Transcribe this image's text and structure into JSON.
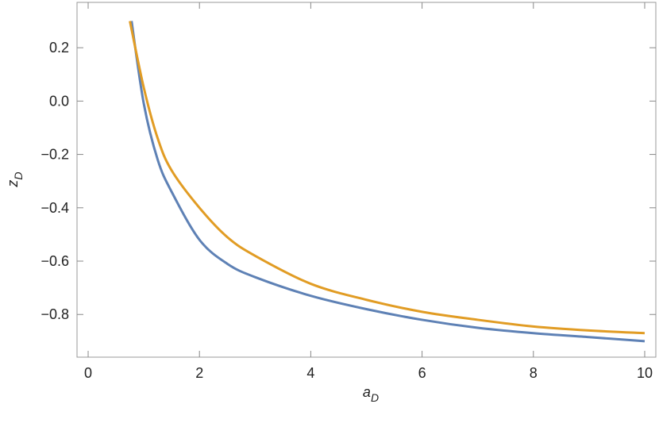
{
  "chart_data": {
    "type": "line",
    "xlabel": "a",
    "xlabel_sub": "D",
    "ylabel": "z",
    "ylabel_sub": "D",
    "xlim": [
      -0.2,
      10.2
    ],
    "ylim": [
      -0.96,
      0.37
    ],
    "xticks": [
      0,
      2,
      4,
      6,
      8,
      10
    ],
    "yticks": [
      0.2,
      {
        "value": 0,
        "label": "0.0"
      },
      {
        "value": -0.2,
        "label": "−0.2"
      },
      {
        "value": -0.4,
        "label": "−0.4"
      },
      {
        "value": -0.6,
        "label": "−0.6"
      },
      {
        "value": -0.8,
        "label": "−0.8"
      }
    ],
    "series": [
      {
        "color": "#5e81b5",
        "x": [
          0.78,
          1.0,
          1.25,
          1.5,
          2,
          2.5,
          3,
          4,
          5,
          6,
          7,
          8,
          9,
          10
        ],
        "values": [
          0.3,
          -0.01,
          -0.22,
          -0.34,
          -0.52,
          -0.61,
          -0.66,
          -0.73,
          -0.78,
          -0.82,
          -0.85,
          -0.87,
          -0.885,
          -0.9
        ]
      },
      {
        "color": "#e19c24",
        "x": [
          0.75,
          1.0,
          1.25,
          1.5,
          2,
          2.5,
          3,
          4,
          5,
          6,
          7,
          8,
          9,
          10
        ],
        "values": [
          0.3,
          0.05,
          -0.14,
          -0.26,
          -0.4,
          -0.51,
          -0.58,
          -0.685,
          -0.745,
          -0.79,
          -0.82,
          -0.845,
          -0.86,
          -0.87
        ]
      }
    ]
  }
}
